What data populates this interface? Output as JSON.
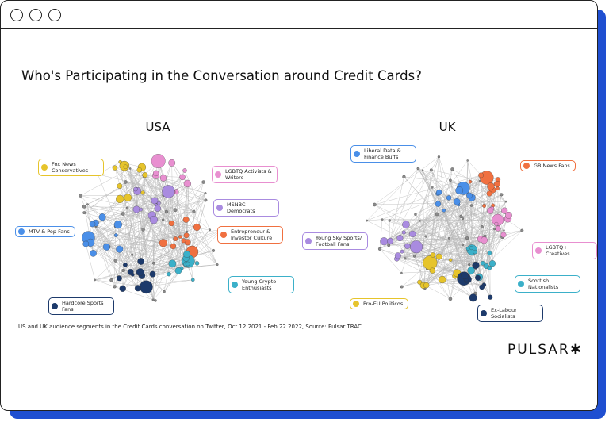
{
  "title": "Who's Participating in the Conversation around Credit Cards?",
  "networks": [
    {
      "label": "USA",
      "segments": [
        {
          "label": "Fox News Conservatives",
          "color": "#e6c42b"
        },
        {
          "label": "LGBTQ Activists & Writers",
          "color": "#e88fd0"
        },
        {
          "label": "MSNBC Democrats",
          "color": "#a98be0"
        },
        {
          "label": "Entrepreneur & Investor Culture",
          "color": "#f07040"
        },
        {
          "label": "MTV & Pop Fans",
          "color": "#4a8fe8"
        },
        {
          "label": "Young Crypto Enthusiasts",
          "color": "#3bb0c9"
        },
        {
          "label": "Hardcore Sports Fans",
          "color": "#1d3a6b"
        }
      ]
    },
    {
      "label": "UK",
      "segments": [
        {
          "label": "Liberal Data & Finance Buffs",
          "color": "#4a8fe8"
        },
        {
          "label": "GB News Fans",
          "color": "#f07040"
        },
        {
          "label": "Young Sky Sports/ Football Fans",
          "color": "#a98be0"
        },
        {
          "label": "LGBTQ+ Creatives",
          "color": "#e88fd0"
        },
        {
          "label": "Scottish Nationalists",
          "color": "#3bb0c9"
        },
        {
          "label": "Pro-EU Politicos",
          "color": "#e6c42b"
        },
        {
          "label": "Ex-Labour Socialists",
          "color": "#1d3a6b"
        }
      ]
    }
  ],
  "caption": "US and UK audience segments in the Credit Cards conversation on Twitter, Oct 12 2021 - Feb 22 2022, Source: Pulsar TRAC",
  "logo": "PULSAR✱"
}
